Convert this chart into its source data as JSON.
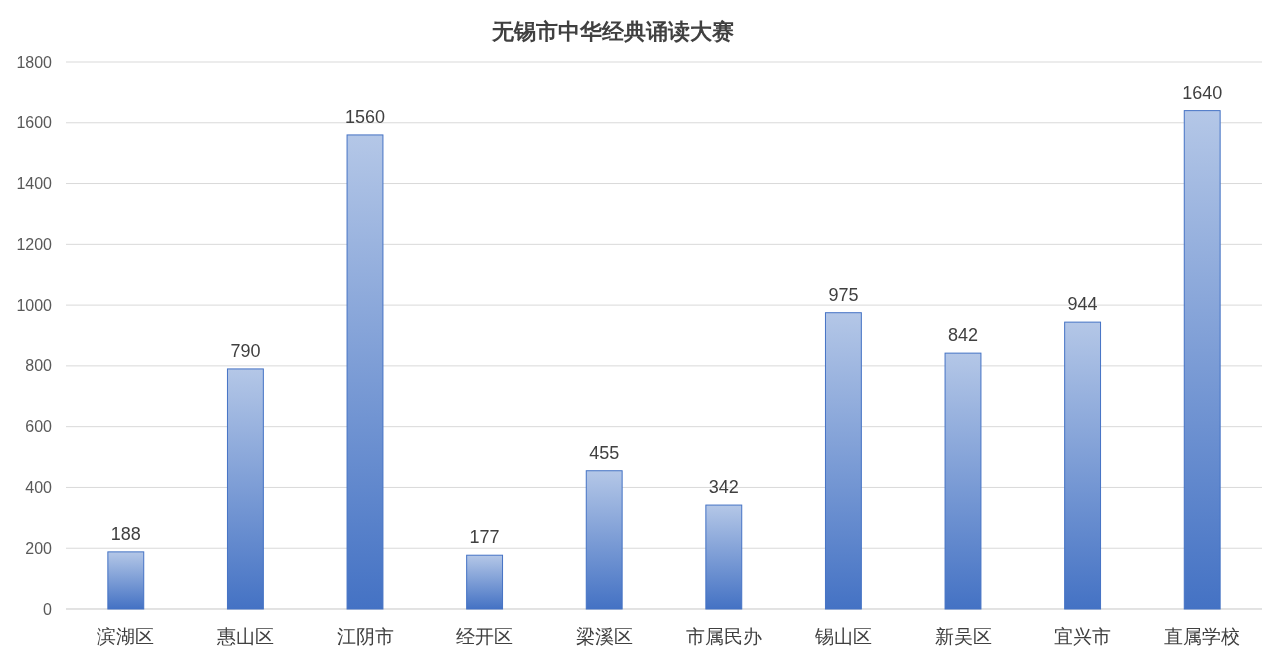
{
  "chart_data": {
    "type": "bar",
    "title": "无锡市中华经典诵读大赛",
    "categories": [
      "滨湖区",
      "惠山区",
      "江阴市",
      "经开区",
      "梁溪区",
      "市属民办",
      "锡山区",
      "新吴区",
      "宜兴市",
      "直属学校"
    ],
    "values": [
      188,
      790,
      1560,
      177,
      455,
      342,
      975,
      842,
      944,
      1640
    ],
    "color": "#4472c4",
    "ylim": [
      0,
      1800
    ],
    "yticks": [
      0,
      200,
      400,
      600,
      800,
      1000,
      1200,
      1400,
      1600,
      1800
    ],
    "grid": "y",
    "data_labels": true
  }
}
